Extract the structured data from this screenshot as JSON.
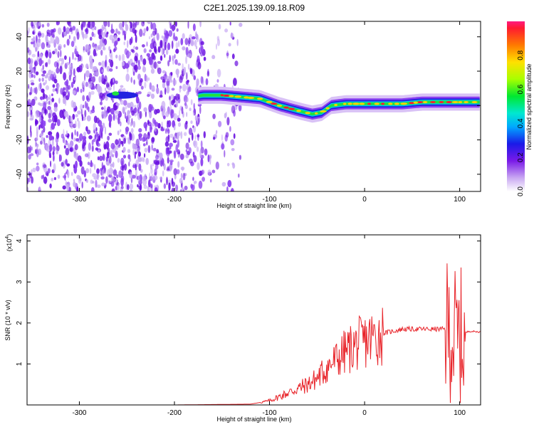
{
  "chart_data": [
    {
      "type": "heatmap",
      "title": "C2E1.2025.139.09.18.R09",
      "xlabel": "Height of straight line (km)",
      "ylabel": "Frequency (Hz)",
      "xlim": [
        -355,
        122
      ],
      "ylim": [
        -50,
        49
      ],
      "x_ticks": [
        "-300",
        "-200",
        "-100",
        "0",
        "100"
      ],
      "y_ticks": [
        "40",
        "20",
        "0",
        "-20",
        "-40"
      ],
      "colorbar": {
        "label": "Normalized spectral amplitude",
        "range": [
          0.0,
          1.0
        ],
        "ticks": [
          "0.0",
          "0.2",
          "0.4",
          "0.6",
          "0.8"
        ]
      },
      "trace": {
        "x": [
          -265,
          -250,
          -235,
          -220,
          -200,
          -180,
          -170,
          -150,
          -130,
          -110,
          -90,
          -70,
          -55,
          -45,
          -35,
          -20,
          0,
          20,
          40,
          60,
          80,
          100,
          120
        ],
        "frequency": [
          6,
          6,
          6,
          5,
          5,
          5,
          6,
          6,
          5,
          4,
          0,
          -3,
          -5,
          -4,
          0,
          1,
          1,
          1,
          1,
          2,
          2,
          2,
          2
        ]
      },
      "noise_extent_x": [
        -355,
        -130
      ]
    },
    {
      "type": "line",
      "xlabel": "Height of straight line (km)",
      "ylabel": "SNR (10 * v/v)",
      "y_multiplier": "(x10",
      "y_multiplier_exp": "4",
      "y_multiplier_close": ")",
      "xlim": [
        -355,
        122
      ],
      "ylim": [
        0,
        4.15
      ],
      "x_ticks": [
        "-300",
        "-200",
        "-100",
        "0",
        "100"
      ],
      "y_ticks": [
        "1",
        "2",
        "3",
        "4"
      ],
      "color": "#e8242a",
      "series": [
        {
          "x": [
            -355,
            -200,
            -120,
            -100,
            -90,
            -80,
            -70,
            -60,
            -50,
            -40,
            -30,
            -20,
            -10,
            0,
            10,
            20,
            30,
            40,
            50,
            60,
            70,
            80,
            85,
            90,
            95,
            100,
            105,
            110,
            122
          ],
          "y": [
            0,
            0,
            0.02,
            0.1,
            0.2,
            0.3,
            0.4,
            0.5,
            0.65,
            0.9,
            1.1,
            1.3,
            1.45,
            1.55,
            1.65,
            1.75,
            1.8,
            1.85,
            1.85,
            1.85,
            1.85,
            1.85,
            1.85,
            1.8,
            1.6,
            1.5,
            1.75,
            1.8,
            1.78
          ]
        }
      ]
    }
  ]
}
